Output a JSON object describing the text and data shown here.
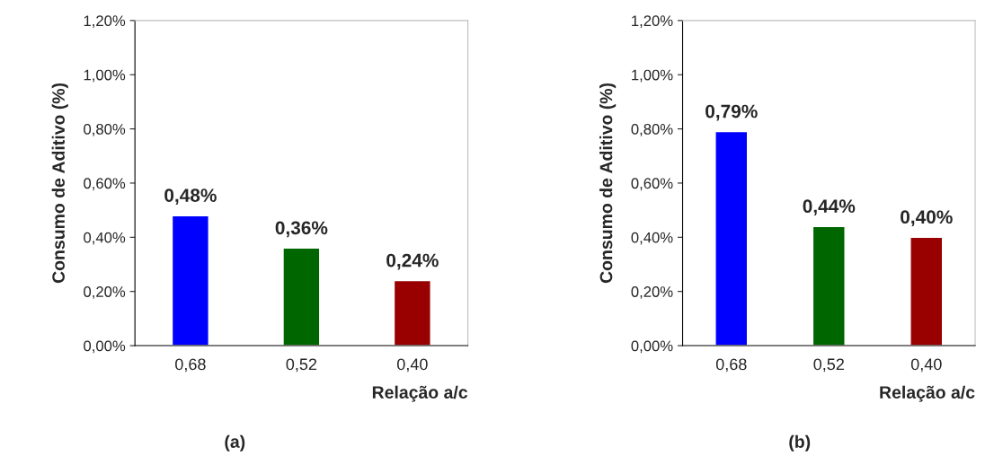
{
  "chart_data": [
    {
      "type": "bar",
      "categories": [
        "0,68",
        "0,52",
        "0,40"
      ],
      "values": [
        0.48,
        0.36,
        0.24
      ],
      "colors": [
        "#0000ff",
        "#006600",
        "#990000"
      ],
      "value_labels": [
        "0,48%",
        "0,36%",
        "0,24%"
      ],
      "xlabel": "Relação a/c",
      "ylabel": "Consumo de Aditivo (%)",
      "ylim": [
        0,
        1.2
      ],
      "yticks": [
        {
          "value": 0,
          "label": "0,00%"
        },
        {
          "value": 0.2,
          "label": "0,20%"
        },
        {
          "value": 0.4,
          "label": "0,40%"
        },
        {
          "value": 0.6,
          "label": "0,60%"
        },
        {
          "value": 0.8,
          "label": "0,80%"
        },
        {
          "value": 1.0,
          "label": "1,00%"
        },
        {
          "value": 1.2,
          "label": "1,20%"
        }
      ],
      "grid": false,
      "legend": false,
      "annotations": [
        "(a)"
      ]
    },
    {
      "type": "bar",
      "categories": [
        "0,68",
        "0,52",
        "0,40"
      ],
      "values": [
        0.79,
        0.44,
        0.4
      ],
      "colors": [
        "#0000ff",
        "#006600",
        "#990000"
      ],
      "value_labels": [
        "0,79%",
        "0,44%",
        "0,40%"
      ],
      "xlabel": "Relação a/c",
      "ylabel": "Consumo de Aditivo (%)",
      "ylim": [
        0,
        1.2
      ],
      "yticks": [
        {
          "value": 0,
          "label": "0,00%"
        },
        {
          "value": 0.2,
          "label": "0,20%"
        },
        {
          "value": 0.4,
          "label": "0,40%"
        },
        {
          "value": 0.6,
          "label": "0,60%"
        },
        {
          "value": 0.8,
          "label": "0,80%"
        },
        {
          "value": 1.0,
          "label": "1,00%"
        },
        {
          "value": 1.2,
          "label": "1,20%"
        }
      ],
      "grid": false,
      "legend": false,
      "annotations": [
        "(b)"
      ]
    }
  ]
}
